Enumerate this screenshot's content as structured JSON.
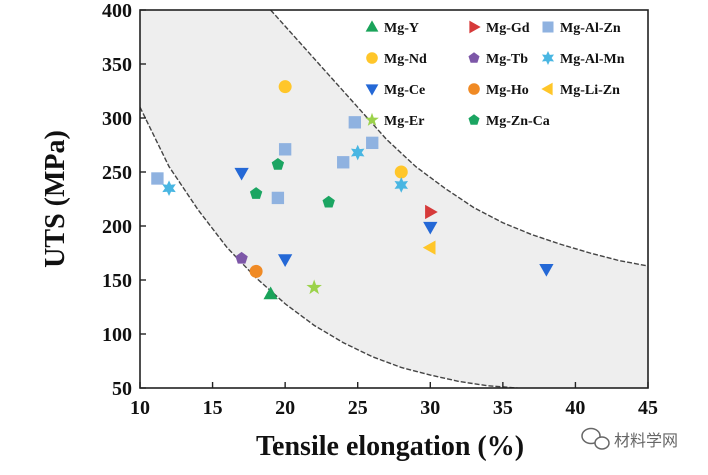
{
  "chart_data": {
    "type": "scatter",
    "xlabel": "Tensile elongation (%)",
    "ylabel": "UTS (MPa)",
    "xlim": [
      10,
      45
    ],
    "ylim": [
      50,
      400
    ],
    "x_ticks": [
      10,
      15,
      20,
      25,
      30,
      35,
      40,
      45
    ],
    "y_ticks": [
      50,
      100,
      150,
      200,
      250,
      300,
      350,
      400
    ],
    "grid": false,
    "legend_position": "top-right",
    "shaded_band": {
      "lower_curve": [
        [
          10,
          310
        ],
        [
          12,
          255
        ],
        [
          14,
          215
        ],
        [
          16,
          180
        ],
        [
          18,
          152
        ],
        [
          20,
          128
        ],
        [
          22,
          108
        ],
        [
          24,
          92
        ],
        [
          26,
          79
        ],
        [
          28,
          69
        ],
        [
          30,
          62
        ],
        [
          32,
          56
        ],
        [
          34,
          52
        ],
        [
          36,
          50
        ]
      ],
      "upper_curve": [
        [
          19,
          400
        ],
        [
          21,
          370
        ],
        [
          23,
          340
        ],
        [
          25,
          310
        ],
        [
          27,
          280
        ],
        [
          29,
          255
        ],
        [
          31,
          235
        ],
        [
          33,
          217
        ],
        [
          35,
          203
        ],
        [
          37,
          192
        ],
        [
          39,
          183
        ],
        [
          41,
          175
        ],
        [
          43,
          168
        ],
        [
          45,
          163
        ]
      ]
    },
    "series": [
      {
        "name": "Mg-Y",
        "marker": "triangle-up",
        "color": "#1aa35a",
        "points": [
          [
            19,
            137
          ]
        ]
      },
      {
        "name": "Mg-Gd",
        "marker": "triangle-right",
        "color": "#d63a3a",
        "points": [
          [
            30,
            213
          ]
        ]
      },
      {
        "name": "Mg-Al-Zn",
        "marker": "square",
        "color": "#8fb2e0",
        "points": [
          [
            11.2,
            244
          ],
          [
            19.5,
            226
          ],
          [
            20,
            271
          ],
          [
            24,
            259
          ],
          [
            24.8,
            296
          ],
          [
            26,
            277
          ]
        ]
      },
      {
        "name": "Mg-Nd",
        "marker": "circle",
        "color": "#ffc62a",
        "points": [
          [
            20,
            329
          ],
          [
            28,
            250
          ]
        ]
      },
      {
        "name": "Mg-Tb",
        "marker": "pentagon",
        "color": "#7d57a8",
        "points": [
          [
            17,
            170
          ]
        ]
      },
      {
        "name": "Mg-Al-Mn",
        "marker": "star6",
        "color": "#49b6e2",
        "points": [
          [
            12,
            235
          ],
          [
            25,
            268
          ],
          [
            28,
            238
          ]
        ]
      },
      {
        "name": "Mg-Ce",
        "marker": "triangle-down",
        "color": "#2468d6",
        "points": [
          [
            17,
            249
          ],
          [
            20,
            169
          ],
          [
            30,
            199
          ],
          [
            38,
            160
          ]
        ]
      },
      {
        "name": "Mg-Ho",
        "marker": "circle",
        "color": "#f08a24",
        "points": [
          [
            18,
            158
          ]
        ]
      },
      {
        "name": "Mg-Li-Zn",
        "marker": "triangle-left",
        "color": "#ffc629",
        "points": [
          [
            30,
            180
          ]
        ]
      },
      {
        "name": "Mg-Er",
        "marker": "star5",
        "color": "#9bd24a",
        "points": [
          [
            22,
            143
          ]
        ]
      },
      {
        "name": "Mg-Zn-Ca",
        "marker": "pentagon",
        "color": "#1ba562",
        "points": [
          [
            18,
            230
          ],
          [
            19.5,
            257
          ],
          [
            23,
            222
          ]
        ]
      }
    ]
  },
  "watermark": {
    "text": "材料学网",
    "icon": "wechat-icon"
  }
}
